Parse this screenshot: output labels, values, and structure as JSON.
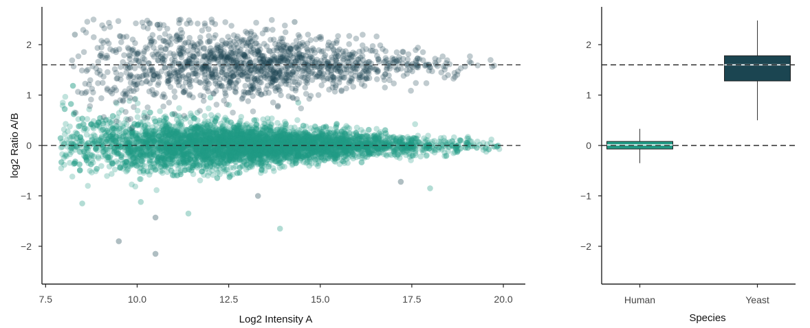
{
  "chart_data": [
    {
      "type": "scatter",
      "xlabel": "Log2 Intensity A",
      "ylabel": "log2 Ratio A/B",
      "xlim": [
        7.4,
        20.6
      ],
      "ylim": [
        -2.75,
        2.75
      ],
      "xticks": [
        7.5,
        10.0,
        12.5,
        15.0,
        17.5,
        20.0
      ],
      "xtick_labels": [
        "7.5",
        "10.0",
        "12.5",
        "15.0",
        "17.5",
        "20.0"
      ],
      "yticks": [
        -2,
        -1,
        0,
        1,
        2
      ],
      "ytick_labels": [
        "−2",
        "−1",
        "0",
        "1",
        "2"
      ],
      "reference_lines": [
        0,
        1.6
      ],
      "grid": false,
      "series": [
        {
          "key": "yeast",
          "color": "#1b4551",
          "x_range": [
            8.2,
            19.9
          ],
          "center_y": 1.6,
          "spread_low_intensity": 0.55,
          "spread_high_intensity": 0.1,
          "approx_count": 1400,
          "outliers": [
            [
              9.5,
              -1.9
            ],
            [
              10.5,
              -2.15
            ],
            [
              10.5,
              -1.43
            ],
            [
              13.3,
              -1.0
            ],
            [
              17.2,
              -0.72
            ],
            [
              8.3,
              2.2
            ],
            [
              14.3,
              2.45
            ]
          ]
        },
        {
          "key": "human",
          "color": "#229a85",
          "x_range": [
            7.9,
            20.0
          ],
          "center_y": 0,
          "spread_low_intensity": 0.35,
          "spread_high_intensity": 0.05,
          "approx_count": 5200,
          "outliers": [
            [
              13.9,
              -1.65
            ],
            [
              11.4,
              -1.35
            ],
            [
              8.5,
              -1.15
            ],
            [
              10.1,
              -1.12
            ],
            [
              18.0,
              -0.85
            ],
            [
              14.4,
              0.85
            ],
            [
              12.0,
              0.95
            ]
          ]
        }
      ]
    },
    {
      "type": "box",
      "xlabel": "Species",
      "ylabel": "",
      "ylim": [
        -2.75,
        2.75
      ],
      "yticks": [
        -2,
        -1,
        0,
        1,
        2
      ],
      "ytick_labels": [
        "−2",
        "−1",
        "0",
        "1",
        "2"
      ],
      "reference_lines": [
        0,
        1.6
      ],
      "categories": [
        "Human",
        "Yeast"
      ],
      "boxes": [
        {
          "category": "Human",
          "color": "#229a85",
          "whisker_low": -0.35,
          "q1": -0.07,
          "median": 0.01,
          "q3": 0.08,
          "whisker_high": 0.33
        },
        {
          "category": "Yeast",
          "color": "#1b4551",
          "whisker_low": 0.5,
          "q1": 1.28,
          "median": 1.6,
          "q3": 1.78,
          "whisker_high": 2.48
        }
      ]
    }
  ]
}
